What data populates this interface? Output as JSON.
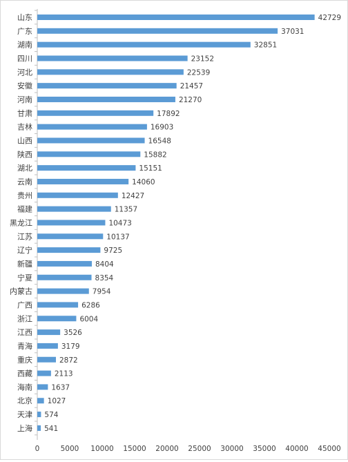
{
  "chart_data": {
    "type": "bar",
    "orientation": "horizontal",
    "title": "",
    "xlabel": "",
    "ylabel": "",
    "categories": [
      "山东",
      "广东",
      "湖南",
      "四川",
      "河北",
      "安徽",
      "河南",
      "甘肃",
      "吉林",
      "山西",
      "陕西",
      "湖北",
      "云南",
      "贵州",
      "福建",
      "黑龙江",
      "江苏",
      "辽宁",
      "新疆",
      "宁夏",
      "内蒙古",
      "广西",
      "浙江",
      "江西",
      "青海",
      "重庆",
      "西藏",
      "海南",
      "北京",
      "天津",
      "上海"
    ],
    "values": [
      42729,
      37031,
      32851,
      23152,
      22539,
      21457,
      21270,
      17892,
      16903,
      16548,
      15882,
      15151,
      14060,
      12427,
      11357,
      10473,
      10137,
      9725,
      8404,
      8354,
      7954,
      6286,
      6004,
      3526,
      3179,
      2872,
      2113,
      1637,
      1027,
      574,
      541
    ],
    "xlim": [
      0,
      45000
    ],
    "xticks": [
      0,
      5000,
      10000,
      15000,
      20000,
      25000,
      30000,
      35000,
      40000,
      45000
    ],
    "grid": false,
    "legend": "none",
    "colors": {
      "bar": "#5b9bd5",
      "axis": "#bfbfbf",
      "text": "#404040"
    }
  }
}
